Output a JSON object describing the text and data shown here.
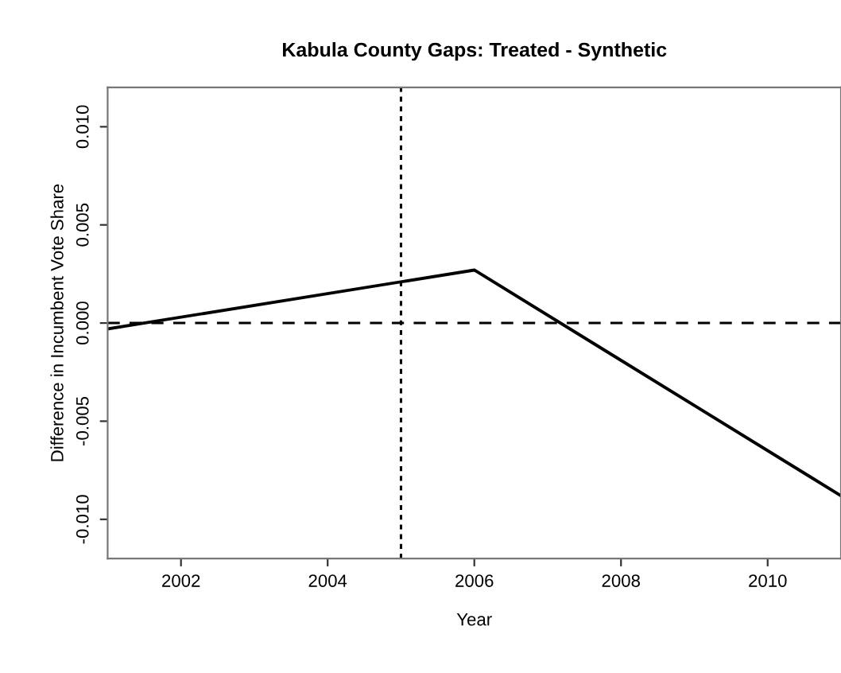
{
  "chart_data": {
    "type": "line",
    "title": "Kabula County Gaps: Treated - Synthetic",
    "xlabel": "Year",
    "ylabel": "Difference in Incumbent Vote Share",
    "x": [
      2001,
      2006,
      2011
    ],
    "series": [
      {
        "color": "#000000",
        "values": [
          -0.0003,
          0.0027,
          -0.0088
        ]
      }
    ],
    "xlim": [
      2001,
      2011
    ],
    "xticks": [
      2002,
      2004,
      2006,
      2008,
      2010
    ],
    "ylim": [
      -0.012,
      0.012
    ],
    "yticks": [
      {
        "value": -0.01,
        "label": "-0.010"
      },
      {
        "value": -0.005,
        "label": "-0.005"
      },
      {
        "value": 0,
        "label": "0.000"
      },
      {
        "value": 0.005,
        "label": "0.005"
      },
      {
        "value": 0.01,
        "label": "0.010"
      }
    ],
    "ref_lines": [
      {
        "axis": "y",
        "value": 0,
        "line_style": "dashed",
        "color": "#000000"
      },
      {
        "axis": "x",
        "value": 2005,
        "line_style": "dotted",
        "color": "#000000"
      }
    ],
    "line_style": "solid"
  }
}
